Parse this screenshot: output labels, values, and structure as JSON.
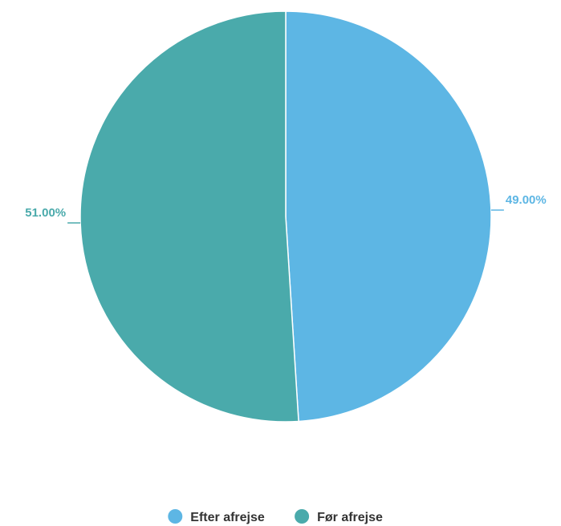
{
  "chart_data": {
    "type": "pie",
    "categories": [
      "Efter afrejse",
      "Før afrejse"
    ],
    "values": [
      49.0,
      51.0
    ],
    "value_labels": [
      "49.00%",
      "51.00%"
    ],
    "colors": [
      "#5db6e4",
      "#4aaaab"
    ],
    "label_colors": [
      "#5db6e4",
      "#4aaaab"
    ],
    "start_angle_deg": 0,
    "direction": "clockwise",
    "legend_position": "bottom"
  }
}
